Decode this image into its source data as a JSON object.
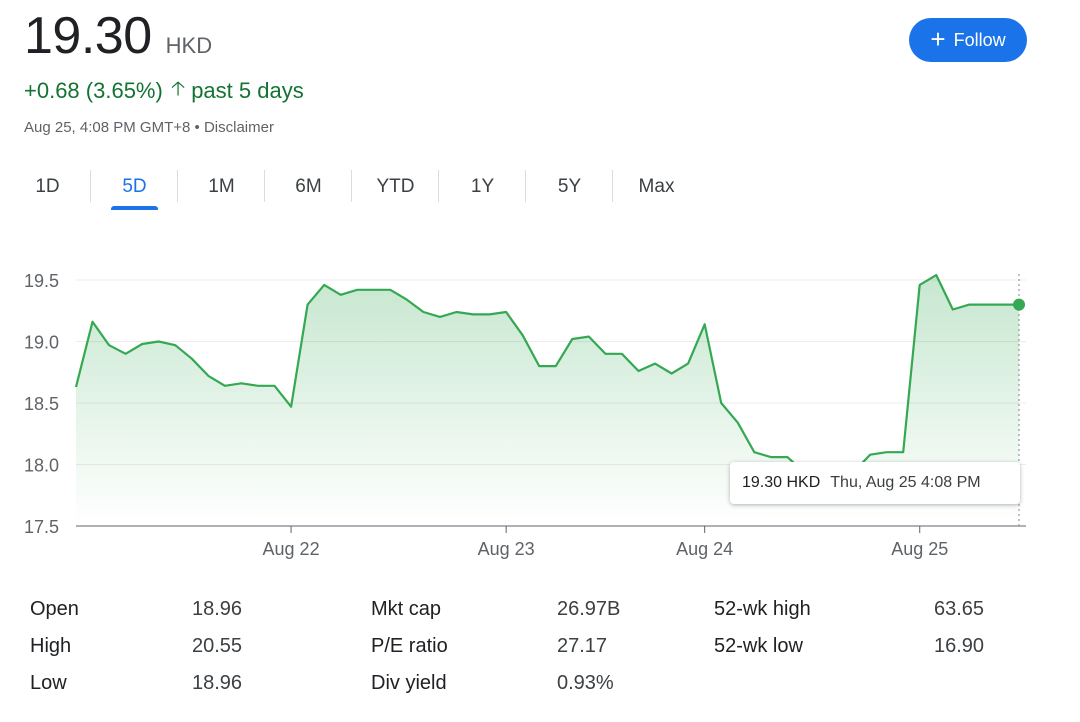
{
  "quote": {
    "price": "19.30",
    "currency": "HKD",
    "change": "+0.68 (3.65%)",
    "period": "past 5 days",
    "timestamp": "Aug 25, 4:08 PM GMT+8",
    "separator": "•",
    "disclaimer": "Disclaimer"
  },
  "follow_button": {
    "label": "Follow",
    "icon": "plus-icon"
  },
  "ranges": [
    {
      "label": "1D",
      "active": false
    },
    {
      "label": "5D",
      "active": true
    },
    {
      "label": "1M",
      "active": false
    },
    {
      "label": "6M",
      "active": false
    },
    {
      "label": "YTD",
      "active": false
    },
    {
      "label": "1Y",
      "active": false
    },
    {
      "label": "5Y",
      "active": false
    },
    {
      "label": "Max",
      "active": false
    }
  ],
  "colors": {
    "up": "#34a853",
    "up_text": "#137333",
    "accent": "#1a73e8"
  },
  "tooltip": {
    "value": "19.30 HKD",
    "date": "Thu, Aug 25 4:08 PM"
  },
  "chart_data": {
    "type": "area",
    "ylim": [
      17.5,
      19.6
    ],
    "yticks": [
      "19.5",
      "19.0",
      "18.5",
      "18.0",
      "17.5"
    ],
    "ytick_values": [
      19.5,
      19.0,
      18.5,
      18.0,
      17.5
    ],
    "xtick_labels": [
      "Aug 22",
      "Aug 23",
      "Aug 24",
      "Aug 25"
    ],
    "xtick_index": [
      13,
      26,
      38,
      51
    ],
    "grid": true,
    "series": [
      {
        "values": [
          18.63,
          19.16,
          18.97,
          18.9,
          18.98,
          19.0,
          18.97,
          18.86,
          18.72,
          18.64,
          18.66,
          18.64,
          18.64,
          18.47,
          19.3,
          19.46,
          19.38,
          19.42,
          19.42,
          19.42,
          19.34,
          19.24,
          19.2,
          19.24,
          19.22,
          19.22,
          19.24,
          19.05,
          18.8,
          18.8,
          19.02,
          19.04,
          18.9,
          18.9,
          18.76,
          18.82,
          18.74,
          18.82,
          19.14,
          18.5,
          18.34,
          18.1,
          18.06,
          18.06,
          17.94,
          17.9,
          17.94,
          17.94,
          18.08,
          18.1,
          18.1,
          19.46,
          19.54,
          19.26,
          19.3,
          19.3,
          19.3,
          19.3
        ]
      }
    ]
  },
  "stats": [
    {
      "label": "Open",
      "value": "18.96"
    },
    {
      "label": "High",
      "value": "20.55"
    },
    {
      "label": "Low",
      "value": "18.96"
    },
    {
      "label": "Mkt cap",
      "value": "26.97B"
    },
    {
      "label": "P/E ratio",
      "value": "27.17"
    },
    {
      "label": "Div yield",
      "value": "0.93%"
    },
    {
      "label": "52-wk high",
      "value": "63.65"
    },
    {
      "label": "52-wk low",
      "value": "16.90"
    }
  ]
}
